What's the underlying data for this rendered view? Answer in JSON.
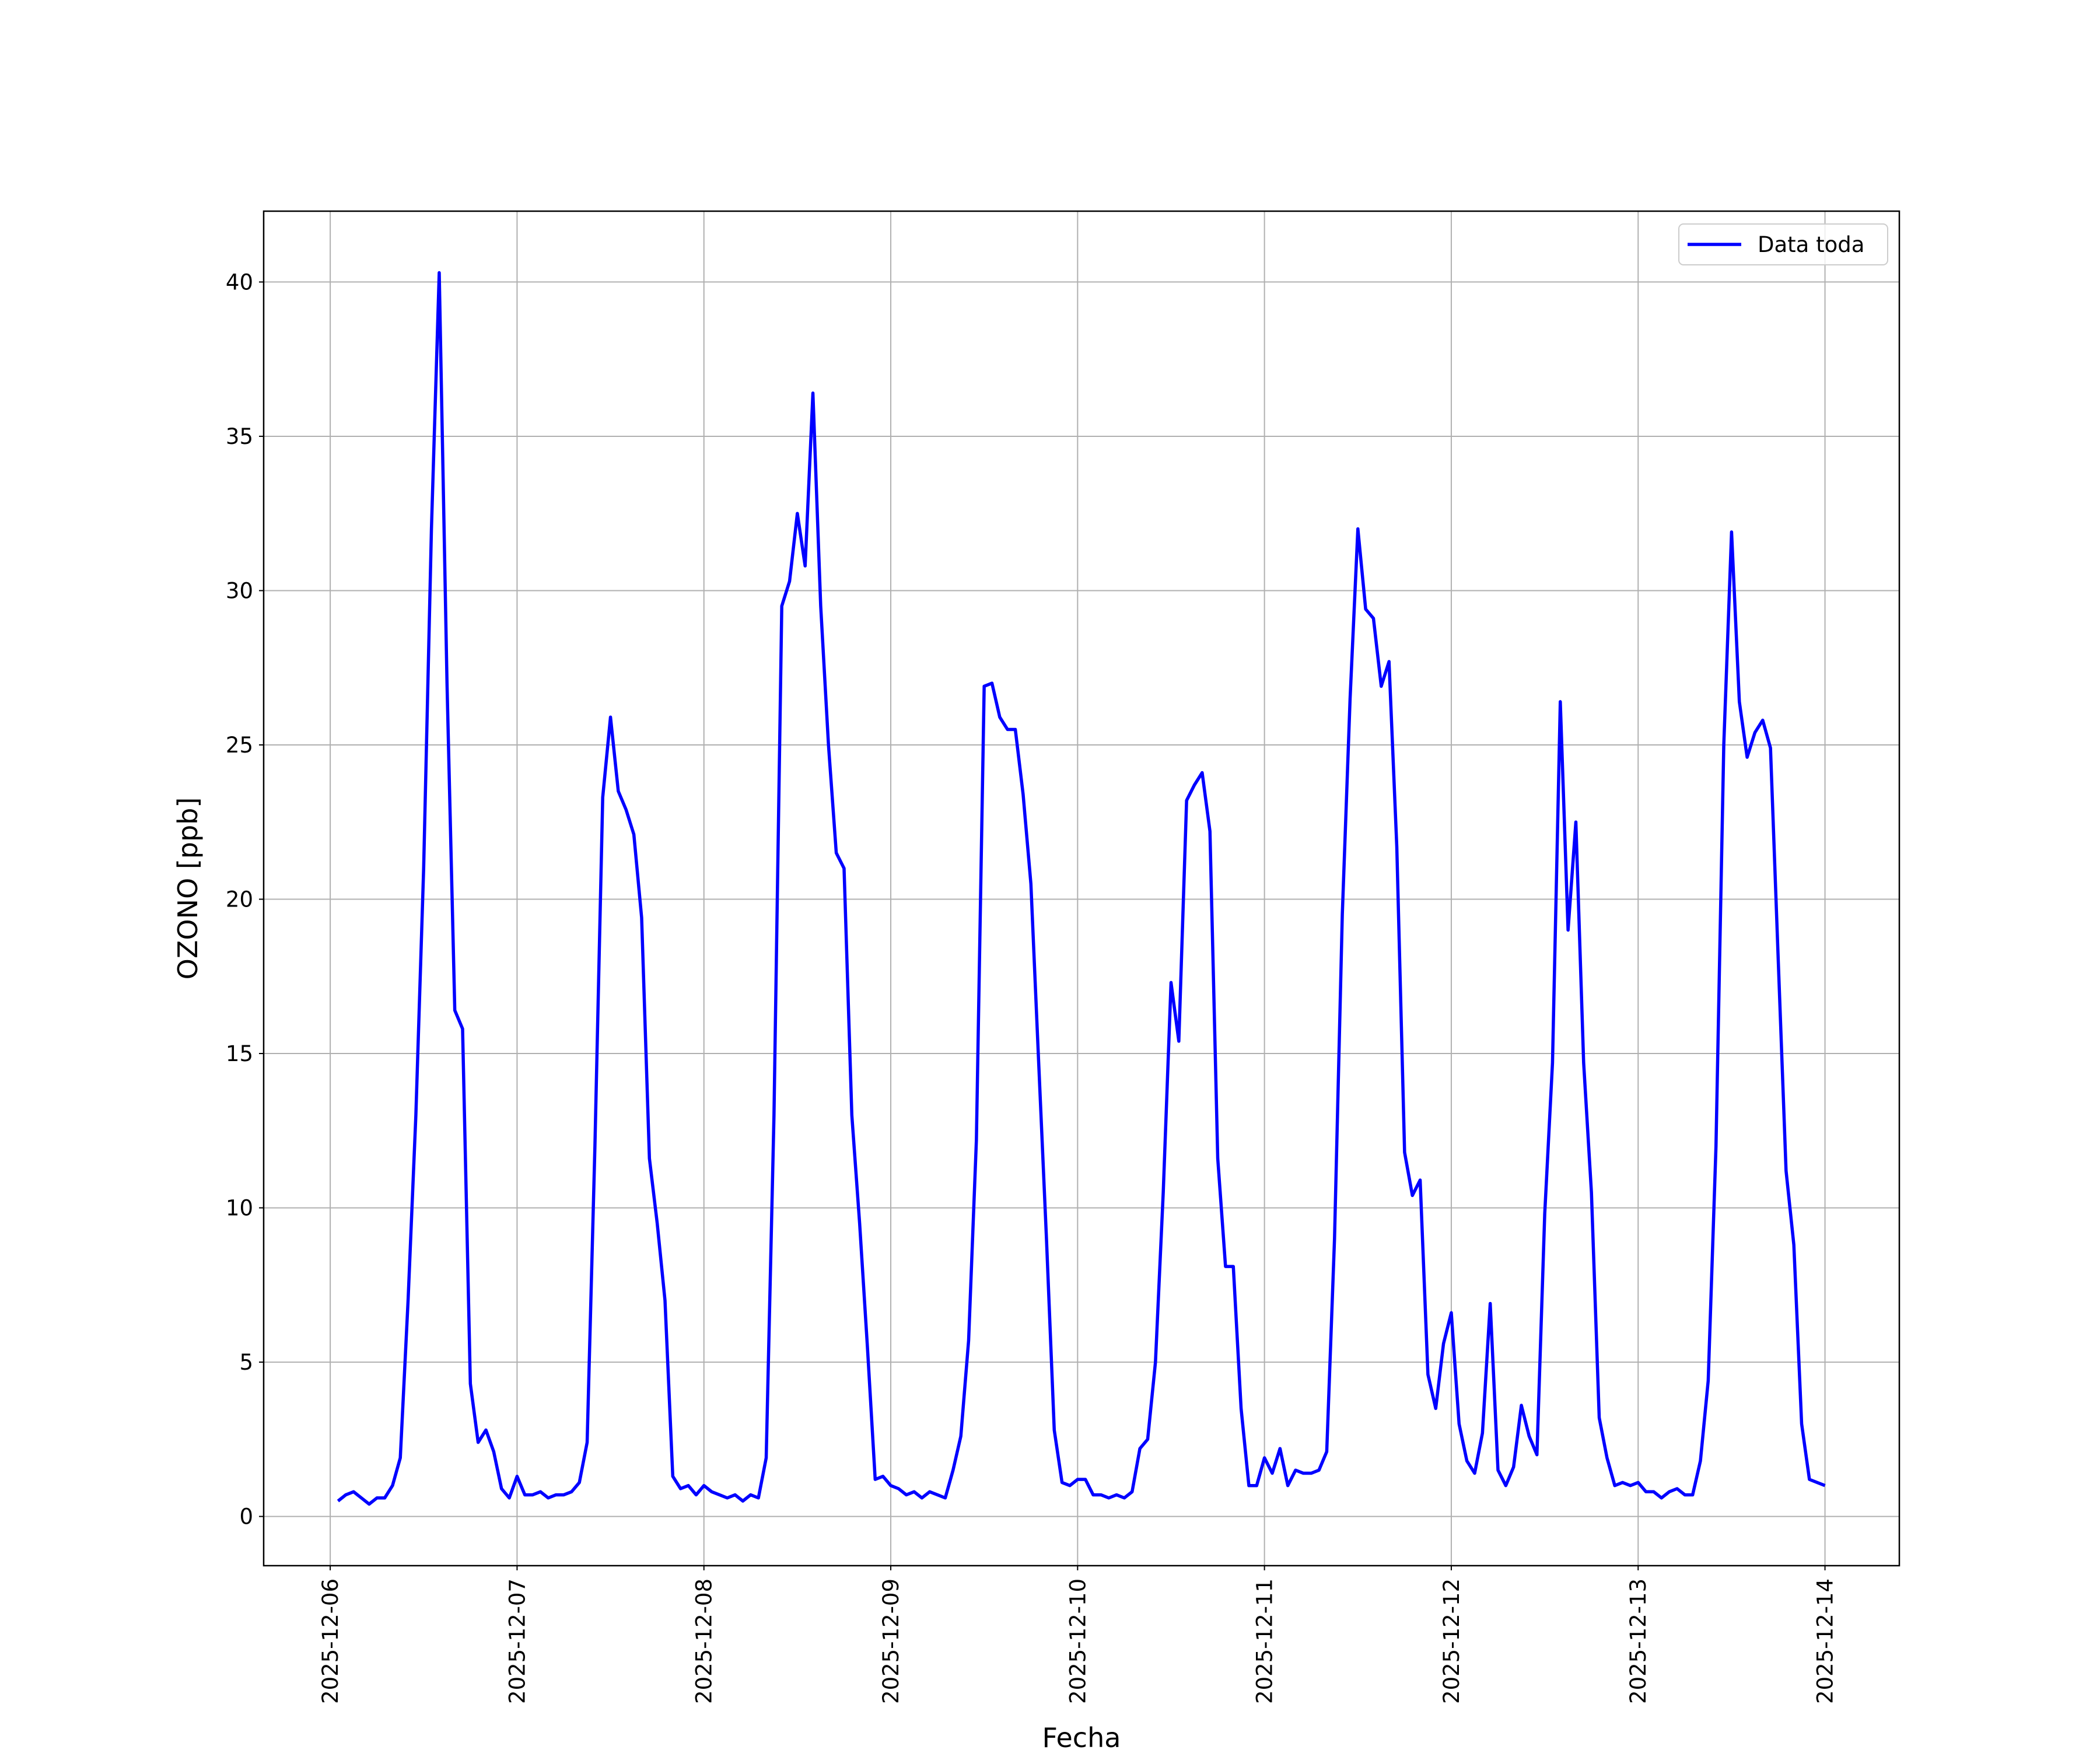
{
  "chart_data": {
    "type": "line",
    "xlabel": "Fecha",
    "ylabel": "OZONO [ppb]",
    "xlim": [
      "2025-12-05 15:27",
      "2025-12-14 09:33"
    ],
    "xticks": [
      "2025-12-06",
      "2025-12-07",
      "2025-12-08",
      "2025-12-09",
      "2025-12-10",
      "2025-12-11",
      "2025-12-12",
      "2025-12-13",
      "2025-12-14"
    ],
    "ylim": [
      -1.595,
      42.295
    ],
    "yticks": [
      0,
      5,
      10,
      15,
      20,
      25,
      30,
      35,
      40
    ],
    "grid": true,
    "legend": "upper right",
    "x": [
      "2025-12-06 01:00",
      "2025-12-06 02:00",
      "2025-12-06 03:00",
      "2025-12-06 04:00",
      "2025-12-06 05:00",
      "2025-12-06 06:00",
      "2025-12-06 07:00",
      "2025-12-06 08:00",
      "2025-12-06 09:00",
      "2025-12-06 10:00",
      "2025-12-06 11:00",
      "2025-12-06 12:00",
      "2025-12-06 13:00",
      "2025-12-06 14:00",
      "2025-12-06 15:00",
      "2025-12-06 16:00",
      "2025-12-06 17:00",
      "2025-12-06 18:00",
      "2025-12-06 19:00",
      "2025-12-06 20:00",
      "2025-12-06 21:00",
      "2025-12-06 22:00",
      "2025-12-06 23:00",
      "2025-12-07 00:00",
      "2025-12-07 01:00",
      "2025-12-07 02:00",
      "2025-12-07 03:00",
      "2025-12-07 04:00",
      "2025-12-07 05:00",
      "2025-12-07 06:00",
      "2025-12-07 07:00",
      "2025-12-07 08:00",
      "2025-12-07 09:00",
      "2025-12-07 10:00",
      "2025-12-07 11:00",
      "2025-12-07 12:00",
      "2025-12-07 13:00",
      "2025-12-07 14:00",
      "2025-12-07 15:00",
      "2025-12-07 16:00",
      "2025-12-07 17:00",
      "2025-12-07 18:00",
      "2025-12-07 19:00",
      "2025-12-07 20:00",
      "2025-12-07 21:00",
      "2025-12-07 22:00",
      "2025-12-07 23:00",
      "2025-12-08 00:00",
      "2025-12-08 01:00",
      "2025-12-08 02:00",
      "2025-12-08 03:00",
      "2025-12-08 04:00",
      "2025-12-08 05:00",
      "2025-12-08 06:00",
      "2025-12-08 07:00",
      "2025-12-08 08:00",
      "2025-12-08 09:00",
      "2025-12-08 10:00",
      "2025-12-08 11:00",
      "2025-12-08 12:00",
      "2025-12-08 13:00",
      "2025-12-08 14:00",
      "2025-12-08 15:00",
      "2025-12-08 16:00",
      "2025-12-08 17:00",
      "2025-12-08 18:00",
      "2025-12-08 19:00",
      "2025-12-08 20:00",
      "2025-12-08 21:00",
      "2025-12-08 22:00",
      "2025-12-08 23:00",
      "2025-12-09 00:00",
      "2025-12-09 01:00",
      "2025-12-09 02:00",
      "2025-12-09 03:00",
      "2025-12-09 04:00",
      "2025-12-09 05:00",
      "2025-12-09 06:00",
      "2025-12-09 07:00",
      "2025-12-09 08:00",
      "2025-12-09 09:00",
      "2025-12-09 10:00",
      "2025-12-09 11:00",
      "2025-12-09 12:00",
      "2025-12-09 13:00",
      "2025-12-09 14:00",
      "2025-12-09 15:00",
      "2025-12-09 16:00",
      "2025-12-09 17:00",
      "2025-12-09 18:00",
      "2025-12-09 19:00",
      "2025-12-09 20:00",
      "2025-12-09 21:00",
      "2025-12-09 22:00",
      "2025-12-09 23:00",
      "2025-12-10 00:00",
      "2025-12-10 01:00",
      "2025-12-10 02:00",
      "2025-12-10 03:00",
      "2025-12-10 04:00",
      "2025-12-10 05:00",
      "2025-12-10 06:00",
      "2025-12-10 07:00",
      "2025-12-10 08:00",
      "2025-12-10 09:00",
      "2025-12-10 10:00",
      "2025-12-10 11:00",
      "2025-12-10 12:00",
      "2025-12-10 13:00",
      "2025-12-10 14:00",
      "2025-12-10 15:00",
      "2025-12-10 16:00",
      "2025-12-10 17:00",
      "2025-12-10 18:00",
      "2025-12-10 19:00",
      "2025-12-10 20:00",
      "2025-12-10 21:00",
      "2025-12-10 22:00",
      "2025-12-10 23:00",
      "2025-12-11 00:00",
      "2025-12-11 01:00",
      "2025-12-11 02:00",
      "2025-12-11 03:00",
      "2025-12-11 04:00",
      "2025-12-11 05:00",
      "2025-12-11 06:00",
      "2025-12-11 07:00",
      "2025-12-11 08:00",
      "2025-12-11 09:00",
      "2025-12-11 10:00",
      "2025-12-11 11:00",
      "2025-12-11 12:00",
      "2025-12-11 13:00",
      "2025-12-11 14:00",
      "2025-12-11 15:00",
      "2025-12-11 16:00",
      "2025-12-11 17:00",
      "2025-12-11 18:00",
      "2025-12-11 19:00",
      "2025-12-11 20:00",
      "2025-12-11 21:00",
      "2025-12-11 22:00",
      "2025-12-11 23:00",
      "2025-12-12 00:00",
      "2025-12-12 01:00",
      "2025-12-12 02:00",
      "2025-12-12 03:00",
      "2025-12-12 04:00",
      "2025-12-12 05:00",
      "2025-12-12 06:00",
      "2025-12-12 07:00",
      "2025-12-12 08:00",
      "2025-12-12 09:00",
      "2025-12-12 10:00",
      "2025-12-12 11:00",
      "2025-12-12 12:00",
      "2025-12-12 13:00",
      "2025-12-12 14:00",
      "2025-12-12 15:00",
      "2025-12-12 16:00",
      "2025-12-12 17:00",
      "2025-12-12 18:00",
      "2025-12-12 19:00",
      "2025-12-12 20:00",
      "2025-12-12 21:00",
      "2025-12-12 22:00",
      "2025-12-12 23:00",
      "2025-12-13 00:00",
      "2025-12-13 01:00",
      "2025-12-13 02:00",
      "2025-12-13 03:00",
      "2025-12-13 04:00",
      "2025-12-13 05:00",
      "2025-12-13 06:00",
      "2025-12-13 07:00",
      "2025-12-13 08:00",
      "2025-12-13 09:00",
      "2025-12-13 10:00",
      "2025-12-13 11:00",
      "2025-12-13 12:00",
      "2025-12-13 13:00",
      "2025-12-13 14:00",
      "2025-12-13 15:00",
      "2025-12-13 16:00",
      "2025-12-13 17:00",
      "2025-12-13 18:00",
      "2025-12-13 19:00",
      "2025-12-13 20:00",
      "2025-12-13 21:00",
      "2025-12-13 22:00",
      "2025-12-13 23:00",
      "2025-12-14 00:00"
    ],
    "series": [
      {
        "name": "Data toda",
        "color": "#0000ff",
        "values": [
          0.5,
          0.7,
          0.8,
          0.6,
          0.4,
          0.6,
          0.6,
          1.0,
          1.9,
          7.0,
          13.0,
          21.0,
          32.0,
          40.3,
          27.0,
          16.4,
          15.8,
          4.3,
          2.4,
          2.8,
          2.1,
          0.9,
          0.6,
          1.3,
          0.7,
          0.7,
          0.8,
          0.6,
          0.7,
          0.7,
          0.8,
          1.1,
          2.4,
          12.0,
          23.3,
          25.9,
          23.5,
          22.9,
          22.1,
          19.4,
          11.6,
          9.5,
          7.0,
          1.3,
          0.9,
          1.0,
          0.7,
          1.0,
          0.8,
          0.7,
          0.6,
          0.7,
          0.5,
          0.7,
          0.6,
          1.9,
          13.0,
          29.5,
          30.3,
          32.5,
          30.8,
          36.4,
          29.5,
          25.0,
          21.5,
          21.0,
          13.0,
          9.5,
          5.5,
          1.2,
          1.3,
          1.0,
          0.9,
          0.7,
          0.8,
          0.6,
          0.8,
          0.7,
          0.6,
          1.5,
          2.6,
          5.7,
          12.2,
          26.9,
          27.0,
          25.9,
          25.5,
          25.5,
          23.4,
          20.5,
          14.7,
          9.0,
          2.8,
          1.1,
          1.0,
          1.2,
          1.2,
          0.7,
          0.7,
          0.6,
          0.7,
          0.6,
          0.8,
          2.2,
          2.5,
          5.0,
          10.5,
          17.3,
          15.4,
          23.2,
          23.7,
          24.1,
          22.2,
          11.6,
          8.1,
          8.1,
          3.5,
          1.0,
          1.0,
          1.9,
          1.4,
          2.2,
          1.0,
          1.5,
          1.4,
          1.4,
          1.5,
          2.1,
          9.0,
          19.5,
          26.5,
          32.0,
          29.4,
          29.1,
          26.9,
          27.7,
          21.7,
          11.8,
          10.4,
          10.9,
          4.6,
          3.5,
          5.6,
          6.6,
          3.0,
          1.8,
          1.4,
          2.7,
          6.9,
          1.5,
          1.0,
          1.6,
          3.6,
          2.6,
          2.0,
          9.8,
          14.7,
          26.4,
          19.0,
          22.5,
          14.7,
          10.5,
          3.2,
          1.9,
          1.0,
          1.1,
          1.0,
          1.1,
          0.8,
          0.8,
          0.6,
          0.8,
          0.9,
          0.7,
          0.7,
          1.8,
          4.4,
          12.0,
          25.0,
          31.9,
          26.4,
          24.6,
          25.4,
          25.8,
          24.9,
          18.0,
          11.2,
          8.8,
          3.0,
          1.2,
          1.1,
          1.0
        ]
      }
    ]
  }
}
